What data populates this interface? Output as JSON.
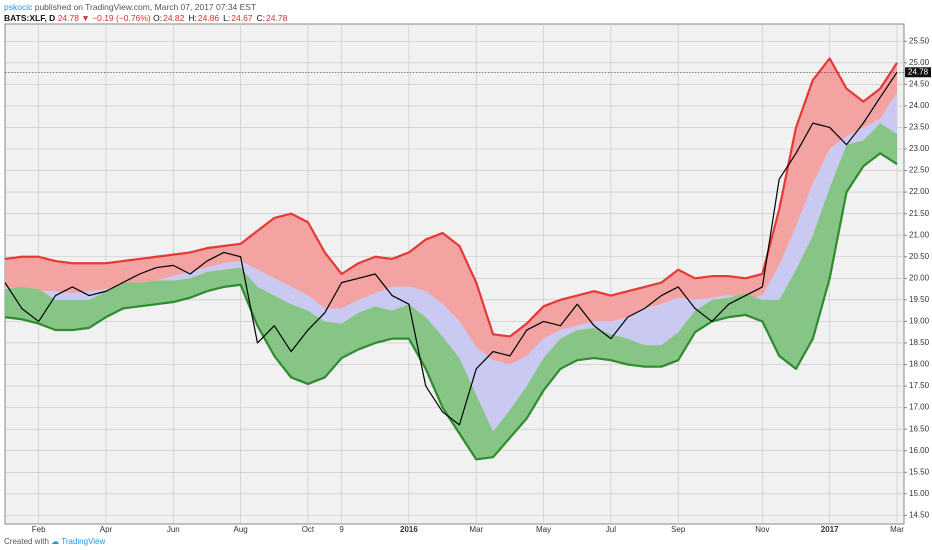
{
  "header": {
    "author": "pskocic",
    "published": "published on TradingView.com, March 07, 2017 07:34 EST",
    "symbol": "BATS:XLF, D",
    "last": "24.78",
    "change": "−0.19 (−0.76%)",
    "ohlc": [
      {
        "label": "O:",
        "value": "24.82"
      },
      {
        "label": "H:",
        "value": "24.86"
      },
      {
        "label": "L:",
        "value": "24.67"
      },
      {
        "label": "C:",
        "value": "24.78"
      }
    ]
  },
  "footer": {
    "prefix": "Created with",
    "brand": "TradingView"
  },
  "chart_data": {
    "type": "band-line",
    "categories": [
      null,
      null,
      "Feb",
      null,
      null,
      null,
      "Apr",
      null,
      null,
      null,
      "Jun",
      null,
      null,
      null,
      "Aug",
      null,
      null,
      null,
      "Oct",
      null,
      "9",
      null,
      null,
      null,
      "2016",
      null,
      null,
      null,
      "Mar",
      null,
      null,
      null,
      "May",
      null,
      null,
      null,
      "Jul",
      null,
      null,
      null,
      "Sep",
      null,
      null,
      null,
      null,
      "Nov",
      null,
      null,
      null,
      "2017",
      null,
      null,
      null,
      "Mar"
    ],
    "series": [
      {
        "color": "#e53935",
        "fill": "#f4a3a3",
        "values": [
          20.45,
          20.5,
          20.5,
          20.4,
          20.35,
          20.35,
          20.35,
          20.4,
          20.45,
          20.5,
          20.55,
          20.6,
          20.7,
          20.75,
          20.8,
          21.1,
          21.4,
          21.5,
          21.3,
          20.6,
          20.1,
          20.35,
          20.5,
          20.45,
          20.6,
          20.9,
          21.05,
          20.75,
          19.9,
          18.7,
          18.65,
          18.95,
          19.35,
          19.5,
          19.6,
          19.7,
          19.6,
          19.7,
          19.8,
          19.9,
          20.2,
          20.0,
          20.05,
          20.05,
          20.0,
          20.1,
          21.6,
          23.5,
          24.6,
          25.1,
          24.4,
          24.1,
          24.4,
          25.0
        ]
      },
      {
        "fill": "#c9c9f2",
        "values": [
          19.8,
          19.75,
          19.7,
          19.7,
          19.65,
          19.7,
          19.75,
          19.8,
          19.9,
          19.95,
          20.05,
          20.15,
          20.25,
          20.35,
          20.4,
          20.2,
          20.0,
          19.8,
          19.6,
          19.3,
          19.3,
          19.5,
          19.65,
          19.8,
          19.8,
          19.7,
          19.4,
          19.0,
          18.4,
          18.1,
          18.0,
          18.2,
          18.6,
          18.8,
          18.9,
          19.0,
          19.0,
          19.1,
          19.3,
          19.4,
          19.55,
          19.5,
          19.55,
          19.6,
          19.5,
          19.6,
          20.3,
          21.2,
          22.2,
          23.0,
          23.3,
          23.5,
          23.7,
          24.3
        ]
      },
      {
        "fill": "#86c586",
        "values": [
          19.75,
          19.8,
          19.75,
          19.5,
          19.5,
          19.5,
          19.7,
          19.9,
          19.9,
          19.95,
          19.95,
          20.0,
          20.15,
          20.2,
          20.25,
          19.8,
          19.6,
          19.4,
          19.25,
          19.0,
          18.95,
          19.2,
          19.35,
          19.25,
          19.4,
          19.1,
          18.65,
          18.15,
          17.3,
          16.45,
          16.95,
          17.5,
          18.15,
          18.6,
          18.8,
          18.85,
          18.7,
          18.6,
          18.45,
          18.45,
          18.75,
          19.25,
          19.5,
          19.55,
          19.65,
          19.5,
          19.5,
          20.2,
          21.0,
          22.1,
          23.1,
          23.2,
          23.6,
          23.35
        ]
      },
      {
        "color": "#2e8b2e",
        "values": [
          19.1,
          19.05,
          18.95,
          18.8,
          18.8,
          18.85,
          19.1,
          19.3,
          19.35,
          19.4,
          19.45,
          19.55,
          19.7,
          19.8,
          19.85,
          18.9,
          18.2,
          17.7,
          17.55,
          17.7,
          18.15,
          18.35,
          18.5,
          18.6,
          18.6,
          17.9,
          17.0,
          16.4,
          15.8,
          15.85,
          16.3,
          16.75,
          17.4,
          17.9,
          18.1,
          18.15,
          18.1,
          18.0,
          17.95,
          17.95,
          18.1,
          18.75,
          19.0,
          19.1,
          19.15,
          19.0,
          18.2,
          17.9,
          18.6,
          20.0,
          22.0,
          22.6,
          22.9,
          22.65
        ]
      },
      {
        "color": "#000000",
        "values": [
          19.9,
          19.3,
          19.0,
          19.6,
          19.8,
          19.6,
          19.7,
          19.9,
          20.1,
          20.25,
          20.3,
          20.1,
          20.4,
          20.6,
          20.5,
          18.5,
          18.9,
          18.3,
          18.8,
          19.2,
          19.9,
          20.0,
          20.1,
          19.6,
          19.4,
          17.5,
          16.9,
          16.6,
          17.9,
          18.3,
          18.2,
          18.8,
          19.0,
          18.9,
          19.4,
          18.9,
          18.6,
          19.1,
          19.3,
          19.6,
          19.8,
          19.3,
          19.0,
          19.4,
          19.6,
          19.8,
          22.3,
          22.9,
          23.6,
          23.5,
          23.1,
          23.6,
          24.2,
          24.78
        ]
      }
    ],
    "last_price": 24.78,
    "ylim": [
      14.3,
      25.9
    ],
    "yticks": [
      {
        "value": 14.5,
        "label": "14.50"
      },
      {
        "value": 15,
        "label": "15.00"
      },
      {
        "value": 15.5,
        "label": "15.50"
      },
      {
        "value": 16,
        "label": "16.00"
      },
      {
        "value": 16.5,
        "label": "16.50"
      },
      {
        "value": 17,
        "label": "17.00"
      },
      {
        "value": 17.5,
        "label": "17.50"
      },
      {
        "value": 18,
        "label": "18.00"
      },
      {
        "value": 18.5,
        "label": "18.50"
      },
      {
        "value": 19,
        "label": "19.00"
      },
      {
        "value": 19.5,
        "label": "19.50"
      },
      {
        "value": 20,
        "label": "20.00"
      },
      {
        "value": 20.5,
        "label": "20.50"
      },
      {
        "value": 21,
        "label": "21.00"
      },
      {
        "value": 21.5,
        "label": "21.50"
      },
      {
        "value": 22,
        "label": "22.00"
      },
      {
        "value": 22.5,
        "label": "22.50"
      },
      {
        "value": 23,
        "label": "23.00"
      },
      {
        "value": 23.5,
        "label": "23.50"
      },
      {
        "value": 24,
        "label": "24.00"
      },
      {
        "value": 24.5,
        "label": "24.50"
      },
      {
        "value": 25,
        "label": "25.00"
      },
      {
        "value": 25.5,
        "label": "25.50"
      }
    ],
    "grid": true
  }
}
